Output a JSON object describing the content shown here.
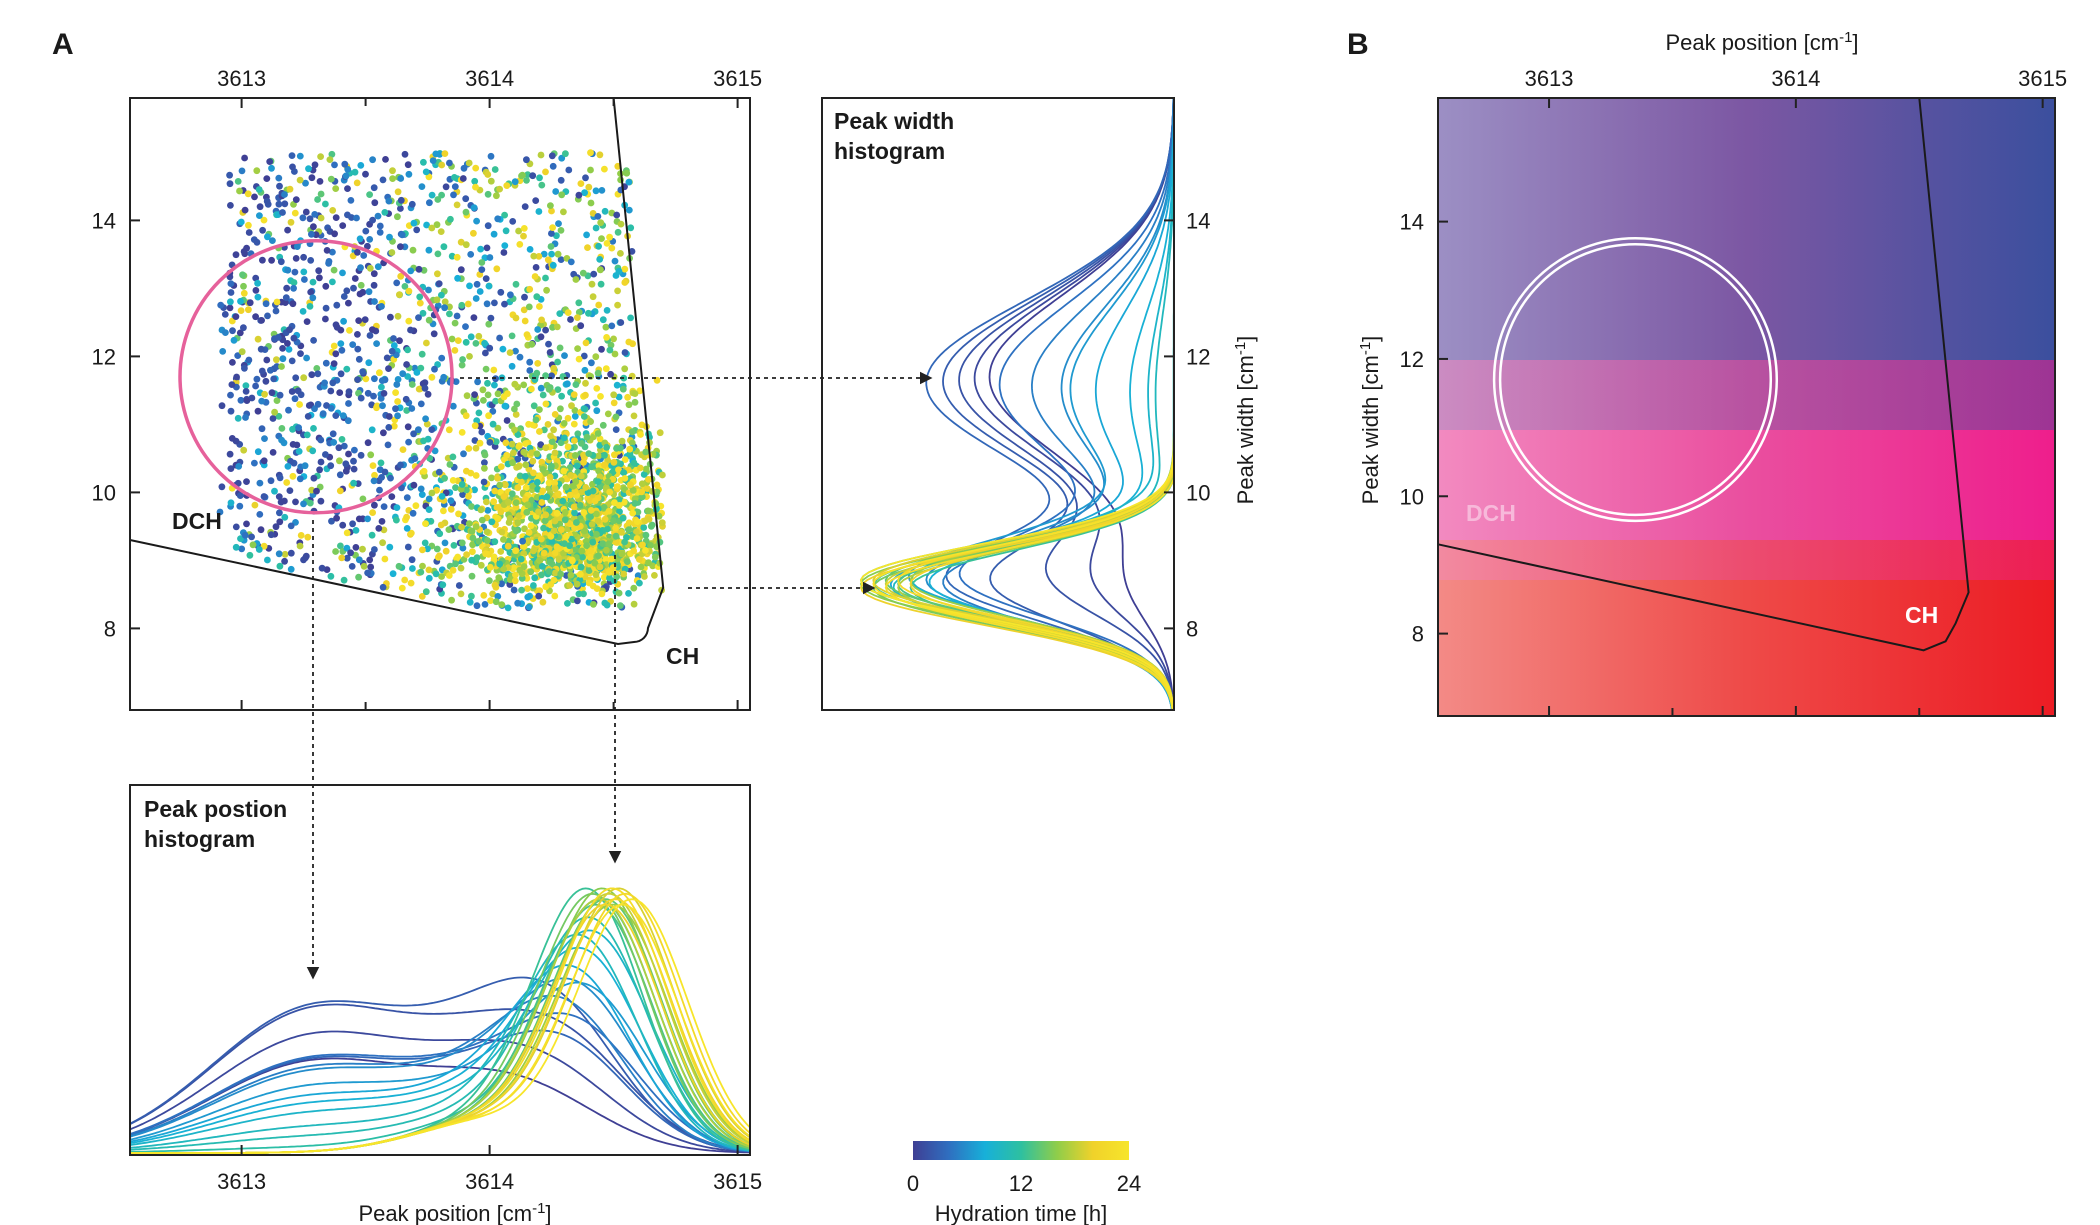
{
  "panels": {
    "a": "A",
    "b": "B"
  },
  "colors": {
    "ramp": [
      "#3f3f94",
      "#2f6fc0",
      "#17b0d9",
      "#2ec0a0",
      "#8fcd4a",
      "#f0d22a",
      "#f7e52b"
    ]
  },
  "labels": {
    "scatter_dch": "DCH",
    "scatter_ch": "CH",
    "b_dch": "DCH",
    "b_ch": "CH",
    "width_hist_title": [
      "Peak width",
      "histogram"
    ],
    "pos_hist_title": [
      "Peak postion",
      "histogram"
    ]
  },
  "axes": {
    "x_label": "Peak position [cm-1]",
    "y_label": "Peak width [cm-1]",
    "x_label_b": "Peak position [cm-1]",
    "y_label_b": "Peak width [cm-1]"
  },
  "colorbar": {
    "label": "Hydration time [h]",
    "ticks": [
      "0",
      "12",
      "24"
    ],
    "range": [
      0,
      24
    ]
  },
  "chart_data": [
    {
      "id": "scatter",
      "type": "scatter",
      "xlim": [
        3612.55,
        3615.05
      ],
      "ylim": [
        6.8,
        15.8
      ],
      "xticks": [
        3613,
        3614,
        3615
      ],
      "yticks": [
        8,
        10,
        12,
        14
      ],
      "x_tick_labels_position": "top",
      "density": "points spread over 3613-3614.6 cm-1 and 8-15 cm-1, densest near 3614.4 cm-1, 8.5 cm-1",
      "circle": {
        "center_x": 3613.3,
        "center_y": 11.7,
        "radius_y": 2.0,
        "color": "#e6619b"
      },
      "boundary": [
        [
          3612.55,
          9.3
        ],
        [
          3614.55,
          7.8
        ],
        [
          3614.7,
          8.6
        ],
        [
          3614.5,
          15.8
        ]
      ]
    },
    {
      "id": "width_histogram",
      "type": "line",
      "ylim": [
        6.8,
        15.8
      ],
      "yticks": [
        8,
        10,
        12,
        14
      ],
      "y_tick_labels_position": "right",
      "series_count": 30,
      "color_scale": "hydration time 0-24 h",
      "early_peak_width": 11.7,
      "late_peak_width": 8.7
    },
    {
      "id": "position_histogram",
      "type": "line",
      "xlim": [
        3612.55,
        3615.05
      ],
      "xticks": [
        3613,
        3614,
        3615
      ],
      "series_count": 30,
      "color_scale": "hydration time 0-24 h",
      "early_peak_position": 3613.3,
      "late_peak_position": 3614.55
    },
    {
      "id": "color_map",
      "type": "heatmap",
      "xlim": [
        3612.55,
        3615.05
      ],
      "ylim": [
        6.8,
        15.8
      ],
      "xticks": [
        3613,
        3614,
        3615
      ],
      "yticks": [
        8,
        10,
        12,
        14
      ],
      "corner_colors": {
        "top_left": "#9c8fc4",
        "top_right": "#3b4f9e",
        "middle_left": "#f28ac0",
        "middle_right": "#ee1e8c",
        "bottom_left": "#f38a86",
        "bottom_right": "#ec1c24"
      },
      "circle": {
        "center_x": 3613.35,
        "center_y": 11.7,
        "radius_y": 2.0,
        "color": "#ffffff"
      }
    }
  ]
}
